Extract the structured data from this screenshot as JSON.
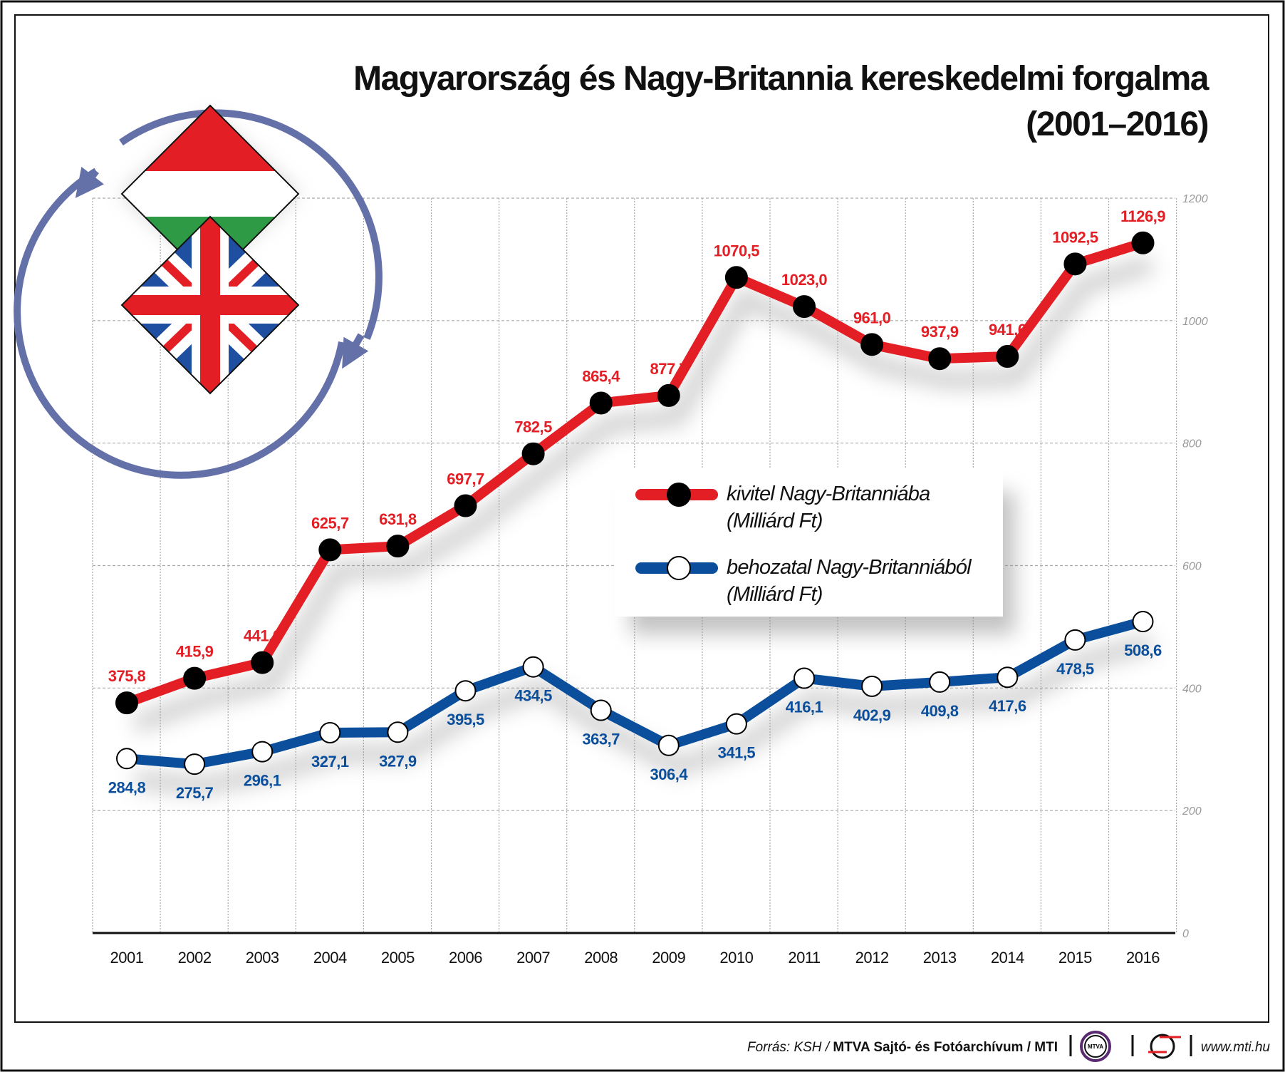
{
  "chart_data": {
    "type": "line",
    "title": "Magyarország és Nagy-Britannia kereskedelmi forgalma",
    "subtitle": "(2001–2016)",
    "x": [
      "2001",
      "2002",
      "2003",
      "2004",
      "2005",
      "2006",
      "2007",
      "2008",
      "2009",
      "2010",
      "2011",
      "2012",
      "2013",
      "2014",
      "2015",
      "2016"
    ],
    "ylim": [
      0,
      1200
    ],
    "yticks": [
      "0",
      "200",
      "400",
      "600",
      "800",
      "1000",
      "1200"
    ],
    "ytick_values": [
      0,
      200,
      400,
      600,
      800,
      1000,
      1200
    ],
    "grid": true,
    "legend_position": "center-right",
    "series": [
      {
        "name": "kivitel Nagy-Britanniába",
        "unit": "(Milliárd Ft)",
        "color": "#e31e24",
        "marker": "black",
        "values": [
          375.8,
          415.9,
          441.6,
          625.7,
          631.8,
          697.7,
          782.5,
          865.4,
          877.7,
          1070.5,
          1023.0,
          961.0,
          937.9,
          941.6,
          1092.5,
          1126.9
        ],
        "labels": [
          "375,8",
          "415,9",
          "441,6",
          "625,7",
          "631,8",
          "697,7",
          "782,5",
          "865,4",
          "877,7",
          "1070,5",
          "1023,0",
          "961,0",
          "937,9",
          "941,6",
          "1092,5",
          "1126,9"
        ]
      },
      {
        "name": "behozatal Nagy-Britanniából",
        "unit": "(Milliárd  Ft)",
        "color": "#0b4f9c",
        "marker": "white",
        "values": [
          284.8,
          275.7,
          296.1,
          327.1,
          327.9,
          395.5,
          434.5,
          363.7,
          306.4,
          341.5,
          416.1,
          402.9,
          409.8,
          417.6,
          478.5,
          508.6
        ],
        "labels": [
          "284,8",
          "275,7",
          "296,1",
          "327,1",
          "327,9",
          "395,5",
          "434,5",
          "363,7",
          "306,4",
          "341,5",
          "416,1",
          "402,9",
          "409,8",
          "417,6",
          "478,5",
          "508,6"
        ]
      }
    ]
  },
  "footer": {
    "source_prefix": "Forrás: KSH / ",
    "source_bold": "MTVA Sajtó- és Fotóarchívum / MTI",
    "mtva_logo_text": "MTVA",
    "url": "www.mti.hu"
  }
}
